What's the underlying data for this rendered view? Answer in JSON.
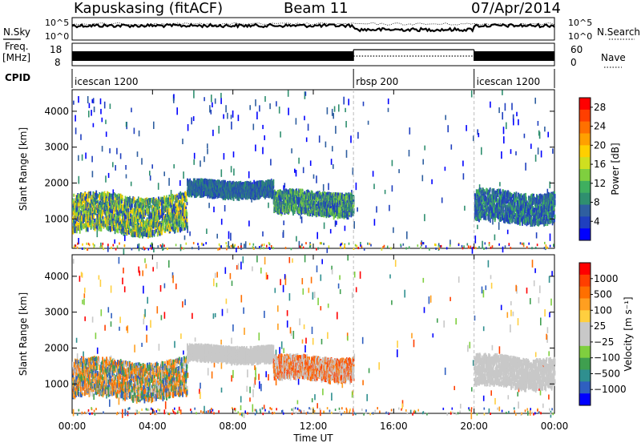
{
  "header": {
    "station": "Kapuskasing (fitACF)",
    "beam": "Beam 11",
    "date": "07/Apr/2014"
  },
  "noise_panel": {
    "left_label": "N.Sky",
    "right_label": "N.Search",
    "tick_top": "10^5",
    "tick_bottom": "10^0"
  },
  "freq_panel": {
    "left_label_line1": "Freq.",
    "left_label_line2": "[MHz]",
    "left_tick_top": "18",
    "left_tick_bottom": "8",
    "right_label": "Nave",
    "right_tick_top": "60",
    "right_tick_bottom": "0"
  },
  "cpid": {
    "label": "CPID",
    "segments": [
      {
        "name": "icescan 1200",
        "start_hour": 0,
        "end_hour": 14
      },
      {
        "name": "rbsp 200",
        "start_hour": 14,
        "end_hour": 20
      },
      {
        "name": "icescan 1200",
        "start_hour": 20,
        "end_hour": 24
      }
    ]
  },
  "chart_data": [
    {
      "type": "heatmap",
      "name": "power",
      "ylabel": "Slant Range [km]",
      "xlabel": "",
      "x_ticks": [
        "00:00",
        "04:00",
        "08:00",
        "12:00",
        "16:00",
        "20:00",
        "00:00"
      ],
      "x_tick_hours": [
        0,
        4,
        8,
        12,
        16,
        20,
        24
      ],
      "y_ticks": [
        1000,
        2000,
        3000,
        4000
      ],
      "ylim": [
        180,
        4600
      ],
      "xlim": [
        0,
        24
      ],
      "colorbar": {
        "label": "Power [dB]",
        "ticks": [
          4,
          8,
          12,
          16,
          20,
          24,
          28
        ],
        "range": [
          0,
          30
        ],
        "colors": [
          "#0000ff",
          "#1f3fbf",
          "#2f5fa0",
          "#2f8f6f",
          "#3faf5f",
          "#7fcf3f",
          "#cfdf20",
          "#ffcf00",
          "#ffa000",
          "#ff7000",
          "#ff3f00",
          "#ff0000"
        ]
      },
      "bands": [
        {
          "t0": 0.0,
          "t1": 5.7,
          "r0": 700,
          "r1": 1700,
          "color_idx": [
            1,
            3,
            5,
            7
          ]
        },
        {
          "t0": 5.7,
          "t1": 10.0,
          "r0": 1700,
          "r1": 2100,
          "color_idx": [
            1,
            2,
            3
          ]
        },
        {
          "t0": 10.0,
          "t1": 14.0,
          "r0": 1200,
          "r1": 1800,
          "color_idx": [
            1,
            3,
            5
          ]
        },
        {
          "t0": 20.0,
          "t1": 24.0,
          "r0": 1000,
          "r1": 1800,
          "color_idx": [
            1,
            2,
            4
          ]
        }
      ]
    },
    {
      "type": "heatmap",
      "name": "velocity",
      "ylabel": "Slant Range [km]",
      "xlabel": "Time UT",
      "x_ticks": [
        "00:00",
        "04:00",
        "08:00",
        "12:00",
        "16:00",
        "20:00",
        "00:00"
      ],
      "x_tick_hours": [
        0,
        4,
        8,
        12,
        16,
        20,
        24
      ],
      "y_ticks": [
        1000,
        2000,
        3000,
        4000
      ],
      "ylim": [
        180,
        4600
      ],
      "xlim": [
        0,
        24
      ],
      "colorbar": {
        "label": "Velocity [m s⁻¹]",
        "ticks": [
          "1000",
          "500",
          "100",
          "25",
          "−25",
          "−100",
          "−500",
          "−1000"
        ],
        "colors": [
          "#0000ff",
          "#2f5fc0",
          "#2f8f8f",
          "#3f9f4f",
          "#7fcf3f",
          "#c8c8c8",
          "#c8c8c8",
          "#ffcf3f",
          "#ff9f20",
          "#ff6f00",
          "#ff3f00",
          "#ff0000"
        ]
      },
      "bands": [
        {
          "t0": 0.0,
          "t1": 5.7,
          "r0": 700,
          "r1": 1700,
          "color_idx": [
            1,
            8,
            9,
            5,
            3
          ]
        },
        {
          "t0": 5.7,
          "t1": 10.0,
          "r0": 1700,
          "r1": 2100,
          "color_idx": [
            5,
            6
          ]
        },
        {
          "t0": 10.0,
          "t1": 14.0,
          "r0": 1200,
          "r1": 1800,
          "color_idx": [
            9,
            10,
            5,
            6
          ]
        },
        {
          "t0": 20.0,
          "t1": 24.0,
          "r0": 1000,
          "r1": 1800,
          "color_idx": [
            5,
            6
          ]
        }
      ]
    }
  ]
}
